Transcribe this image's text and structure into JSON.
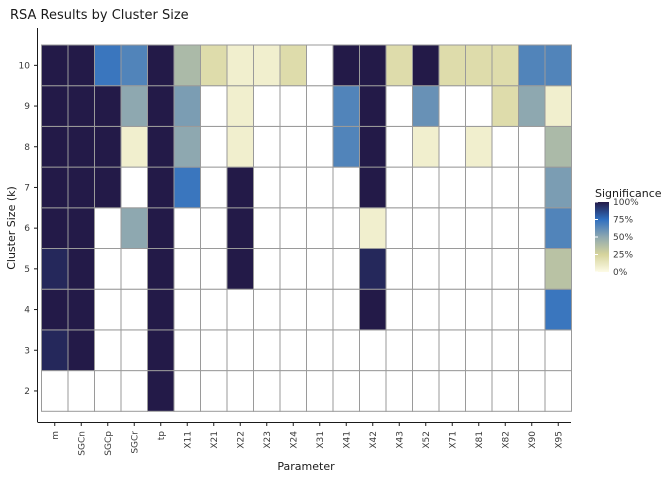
{
  "chart_data": {
    "type": "heatmap",
    "title": "RSA Results by Cluster Size",
    "xlabel": "Parameter",
    "ylabel": "Cluster Size (k)",
    "x_categories": [
      "m",
      "SGCn",
      "SGCp",
      "SGCr",
      "tp",
      "X11",
      "X21",
      "X22",
      "X23",
      "X24",
      "X31",
      "X41",
      "X42",
      "X43",
      "X52",
      "X71",
      "X81",
      "X82",
      "X90",
      "X95"
    ],
    "y_categories": [
      2,
      3,
      4,
      5,
      6,
      7,
      8,
      9,
      10
    ],
    "value_range": [
      0,
      100
    ],
    "color_scale": {
      "stops": [
        {
          "value": 0,
          "color": "#fdfbe6"
        },
        {
          "value": 25,
          "color": "#d6d49c"
        },
        {
          "value": 50,
          "color": "#8ea8b0"
        },
        {
          "value": 75,
          "color": "#2f6fc0"
        },
        {
          "value": 100,
          "color": "#231a48"
        }
      ]
    },
    "legend": {
      "title": "Significance",
      "labels": [
        "100%",
        "75%",
        "50%",
        "25%",
        "0%"
      ],
      "placement": "right"
    },
    "values": {
      "10": [
        100,
        100,
        72,
        66,
        100,
        40,
        20,
        8,
        8,
        20,
        0,
        100,
        100,
        20,
        100,
        20,
        20,
        20,
        66,
        66
      ],
      "9": [
        100,
        100,
        100,
        50,
        100,
        55,
        0,
        8,
        0,
        0,
        0,
        66,
        100,
        0,
        60,
        0,
        0,
        20,
        50,
        8
      ],
      "8": [
        100,
        100,
        100,
        8,
        100,
        50,
        0,
        8,
        0,
        0,
        0,
        66,
        100,
        0,
        8,
        0,
        8,
        0,
        0,
        40
      ],
      "7": [
        100,
        100,
        100,
        0,
        100,
        72,
        0,
        100,
        0,
        0,
        0,
        0,
        100,
        0,
        0,
        0,
        0,
        0,
        0,
        55
      ],
      "6": [
        100,
        100,
        0,
        50,
        100,
        0,
        0,
        100,
        0,
        0,
        0,
        0,
        8,
        0,
        0,
        0,
        0,
        0,
        0,
        66
      ],
      "5": [
        96,
        100,
        0,
        0,
        100,
        0,
        0,
        100,
        0,
        0,
        0,
        0,
        96,
        0,
        0,
        0,
        0,
        0,
        0,
        35
      ],
      "4": [
        100,
        100,
        0,
        0,
        100,
        0,
        0,
        0,
        0,
        0,
        0,
        0,
        100,
        0,
        0,
        0,
        0,
        0,
        0,
        72
      ],
      "3": [
        96,
        100,
        0,
        0,
        100,
        0,
        0,
        0,
        0,
        0,
        0,
        0,
        0,
        0,
        0,
        0,
        0,
        0,
        0,
        0
      ],
      "2": [
        0,
        0,
        0,
        0,
        100,
        0,
        0,
        0,
        0,
        0,
        0,
        0,
        0,
        0,
        0,
        0,
        0,
        0,
        0,
        0
      ]
    }
  }
}
